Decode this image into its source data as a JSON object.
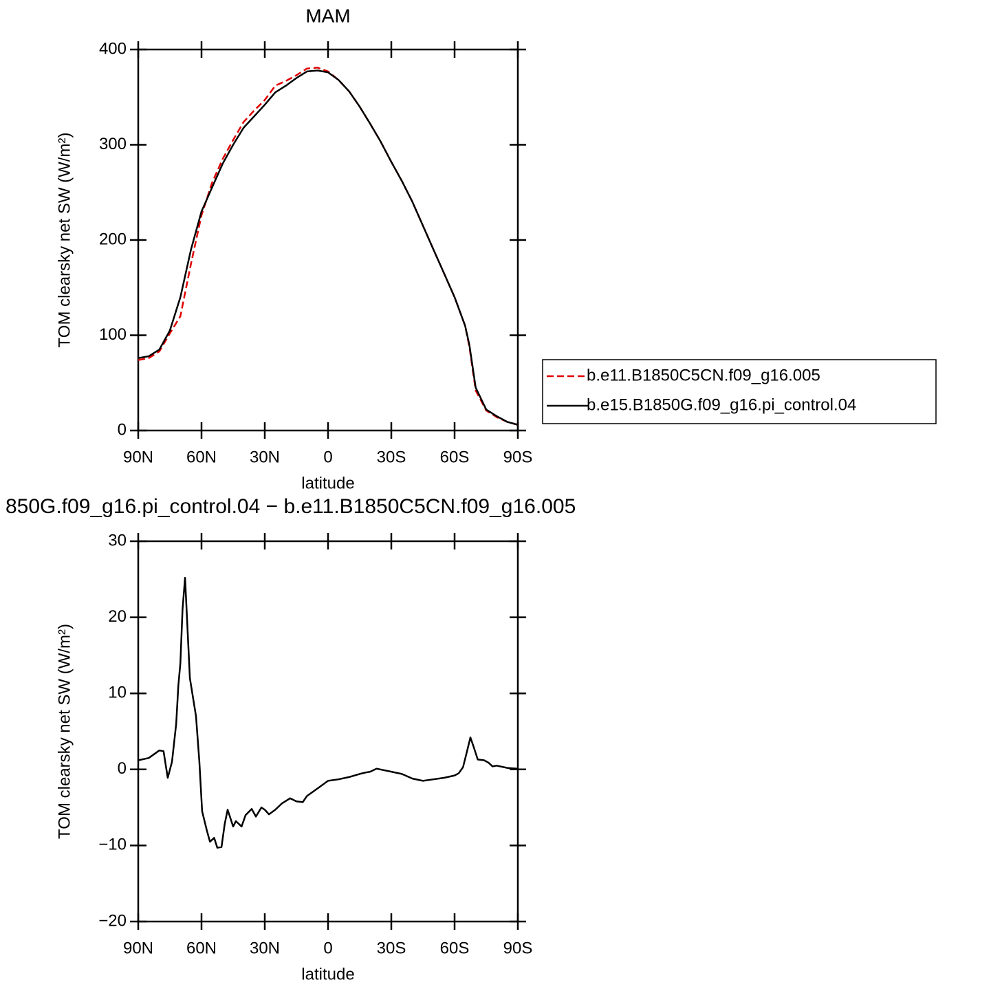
{
  "chart_data": [
    {
      "type": "line",
      "title": "MAM",
      "xlabel": "latitude",
      "ylabel": "TOM clearsky net SW (W/m²)",
      "x": [
        90,
        85,
        80,
        75,
        70,
        65,
        60,
        55,
        50,
        45,
        40,
        35,
        30,
        25,
        20,
        15,
        10,
        5,
        0,
        -5,
        -10,
        -15,
        -20,
        -25,
        -30,
        -35,
        -40,
        -45,
        -50,
        -55,
        -60,
        -65,
        -67,
        -70,
        -75,
        -80,
        -85,
        -90
      ],
      "series": [
        {
          "name": "b.e11.B1850C5CN.f09_g16.005",
          "color": "#e00000",
          "linestyle": "dashed",
          "values": [
            74,
            76,
            83,
            102,
            120,
            175,
            226,
            260,
            285,
            305,
            324,
            336,
            347,
            362,
            367,
            373,
            380,
            381,
            377,
            368,
            356,
            340,
            322,
            303,
            282,
            262,
            240,
            215,
            190,
            165,
            140,
            110,
            88,
            42,
            21,
            14,
            9,
            6
          ]
        },
        {
          "name": "b.e15.B1850G.f09_g16.pi_control.04",
          "color": "#000000",
          "linestyle": "solid",
          "values": [
            76,
            78,
            85,
            105,
            140,
            190,
            230,
            255,
            280,
            300,
            318,
            330,
            342,
            355,
            362,
            370,
            377,
            378,
            376,
            368,
            356,
            340,
            322,
            303,
            282,
            262,
            240,
            215,
            190,
            165,
            140,
            110,
            90,
            45,
            22,
            15,
            9,
            6
          ]
        }
      ],
      "xlim": [
        90,
        -90
      ],
      "xticks": [
        {
          "value": 90,
          "label": "90N"
        },
        {
          "value": 60,
          "label": "60N"
        },
        {
          "value": 30,
          "label": "30N"
        },
        0,
        {
          "value": -30,
          "label": "30S"
        },
        {
          "value": -60,
          "label": "60S"
        },
        {
          "value": -90,
          "label": "90S"
        }
      ],
      "ylim": [
        0,
        400
      ],
      "yticks": [
        0,
        100,
        200,
        300,
        400
      ],
      "legend": "outside right"
    },
    {
      "type": "line",
      "title": "850G.f09_g16.pi_control.04 − b.e11.B1850C5CN.f09_g16.005",
      "xlabel": "latitude",
      "ylabel": "TOM clearsky net SW (W/m²)",
      "x": [
        90,
        85,
        80,
        78,
        76,
        74,
        72,
        71,
        70,
        69,
        67.8,
        65.5,
        62.6,
        61,
        59.7,
        57.5,
        56,
        54,
        52.5,
        50.5,
        49,
        47.6,
        45,
        43.7,
        41,
        39.1,
        36.2,
        34.2,
        31.6,
        30,
        28,
        25,
        22,
        18,
        15,
        12,
        10,
        5,
        0,
        -5,
        -10,
        -15,
        -18,
        -20,
        -23,
        -30,
        -35,
        -40,
        -45,
        -50,
        -55,
        -60,
        -62,
        -64,
        -66,
        -67.5,
        -69,
        -71,
        -74,
        -76,
        -78,
        -80,
        -85,
        -90
      ],
      "series": [
        {
          "color": "#000000",
          "linestyle": "solid",
          "values": [
            1.2,
            1.5,
            2.5,
            2.4,
            -1.1,
            1,
            6,
            11,
            14,
            21,
            25.2,
            12,
            7,
            1,
            -5.5,
            -8,
            -9.5,
            -9,
            -10.3,
            -10.2,
            -7.2,
            -5.3,
            -7.5,
            -6.8,
            -7.5,
            -6,
            -5.2,
            -6.2,
            -5,
            -5.3,
            -5.9,
            -5.3,
            -4.5,
            -3.8,
            -4.2,
            -4.3,
            -3.5,
            -2.5,
            -1.5,
            -1.3,
            -1,
            -0.6,
            -0.4,
            -0.3,
            0.1,
            -0.3,
            -0.6,
            -1.2,
            -1.5,
            -1.3,
            -1.1,
            -0.8,
            -0.5,
            0.3,
            2.5,
            4.2,
            3,
            1.3,
            1.2,
            0.9,
            0.4,
            0.5,
            0.2,
            0.1
          ]
        }
      ],
      "xlim": [
        90,
        -90
      ],
      "xticks": [
        {
          "value": 90,
          "label": "90N"
        },
        {
          "value": 60,
          "label": "60N"
        },
        {
          "value": 30,
          "label": "30N"
        },
        0,
        {
          "value": -30,
          "label": "30S"
        },
        {
          "value": -60,
          "label": "60S"
        },
        {
          "value": -90,
          "label": "90S"
        }
      ],
      "ylim": [
        -20,
        30
      ],
      "yticks": [
        {
          "value": -20,
          "label": "−20"
        },
        {
          "value": -10,
          "label": "−10"
        },
        0,
        10,
        20,
        30
      ]
    }
  ]
}
